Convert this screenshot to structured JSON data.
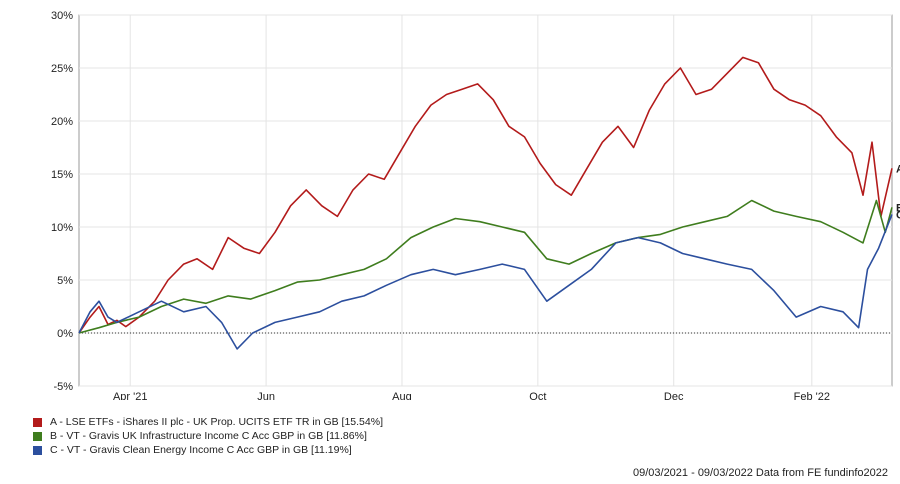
{
  "chart_data": {
    "type": "line",
    "ylim": [
      -5,
      30
    ],
    "y_ticks": [
      "30%",
      "25%",
      "20%",
      "15%",
      "10%",
      "5%",
      "0%",
      "-5%"
    ],
    "y_tick_values": [
      30,
      25,
      20,
      15,
      10,
      5,
      0,
      -5
    ],
    "x_range": [
      "2021-03-09",
      "2022-03-09"
    ],
    "x_ticks": [
      {
        "label": "Apr '21",
        "date": "2021-04-01"
      },
      {
        "label": "Jun",
        "date": "2021-06-01"
      },
      {
        "label": "Aug",
        "date": "2021-08-01"
      },
      {
        "label": "Oct",
        "date": "2021-10-01"
      },
      {
        "label": "Dec",
        "date": "2021-12-01"
      },
      {
        "label": "Feb '22",
        "date": "2022-02-01"
      }
    ],
    "grid": true,
    "series": [
      {
        "name": "A - LSE ETFs - iShares II plc - UK Prop. UCITS ETF TR in GB [15.54%]",
        "marker": "A",
        "color": "#b31b1b",
        "points": [
          [
            "2021-03-09",
            0
          ],
          [
            "2021-03-14",
            1.5
          ],
          [
            "2021-03-18",
            2.5
          ],
          [
            "2021-03-22",
            0.8
          ],
          [
            "2021-03-26",
            1.2
          ],
          [
            "2021-03-30",
            0.6
          ],
          [
            "2021-04-05",
            1.5
          ],
          [
            "2021-04-12",
            3.0
          ],
          [
            "2021-04-18",
            5.0
          ],
          [
            "2021-04-25",
            6.5
          ],
          [
            "2021-05-01",
            7.0
          ],
          [
            "2021-05-08",
            6.0
          ],
          [
            "2021-05-15",
            9.0
          ],
          [
            "2021-05-22",
            8.0
          ],
          [
            "2021-05-29",
            7.5
          ],
          [
            "2021-06-05",
            9.5
          ],
          [
            "2021-06-12",
            12.0
          ],
          [
            "2021-06-19",
            13.5
          ],
          [
            "2021-06-26",
            12.0
          ],
          [
            "2021-07-03",
            11.0
          ],
          [
            "2021-07-10",
            13.5
          ],
          [
            "2021-07-17",
            15.0
          ],
          [
            "2021-07-24",
            14.5
          ],
          [
            "2021-07-31",
            17.0
          ],
          [
            "2021-08-07",
            19.5
          ],
          [
            "2021-08-14",
            21.5
          ],
          [
            "2021-08-21",
            22.5
          ],
          [
            "2021-08-28",
            23.0
          ],
          [
            "2021-09-04",
            23.5
          ],
          [
            "2021-09-11",
            22.0
          ],
          [
            "2021-09-18",
            19.5
          ],
          [
            "2021-09-25",
            18.5
          ],
          [
            "2021-10-02",
            16.0
          ],
          [
            "2021-10-09",
            14.0
          ],
          [
            "2021-10-16",
            13.0
          ],
          [
            "2021-10-23",
            15.5
          ],
          [
            "2021-10-30",
            18.0
          ],
          [
            "2021-11-06",
            19.5
          ],
          [
            "2021-11-13",
            17.5
          ],
          [
            "2021-11-20",
            21.0
          ],
          [
            "2021-11-27",
            23.5
          ],
          [
            "2021-12-04",
            25.0
          ],
          [
            "2021-12-11",
            22.5
          ],
          [
            "2021-12-18",
            23.0
          ],
          [
            "2021-12-25",
            24.5
          ],
          [
            "2022-01-01",
            26.0
          ],
          [
            "2022-01-08",
            25.5
          ],
          [
            "2022-01-15",
            23.0
          ],
          [
            "2022-01-22",
            22.0
          ],
          [
            "2022-01-29",
            21.5
          ],
          [
            "2022-02-05",
            20.5
          ],
          [
            "2022-02-12",
            18.5
          ],
          [
            "2022-02-19",
            17.0
          ],
          [
            "2022-02-24",
            13.0
          ],
          [
            "2022-02-28",
            18.0
          ],
          [
            "2022-03-04",
            11.0
          ],
          [
            "2022-03-09",
            15.54
          ]
        ]
      },
      {
        "name": "B - VT - Gravis UK Infrastructure Income C Acc GBP in GB [11.86%]",
        "marker": "B",
        "color": "#3f7d1e",
        "points": [
          [
            "2021-03-09",
            0
          ],
          [
            "2021-03-18",
            0.5
          ],
          [
            "2021-03-26",
            1.0
          ],
          [
            "2021-04-05",
            1.5
          ],
          [
            "2021-04-15",
            2.5
          ],
          [
            "2021-04-25",
            3.2
          ],
          [
            "2021-05-05",
            2.8
          ],
          [
            "2021-05-15",
            3.5
          ],
          [
            "2021-05-25",
            3.2
          ],
          [
            "2021-06-05",
            4.0
          ],
          [
            "2021-06-15",
            4.8
          ],
          [
            "2021-06-25",
            5.0
          ],
          [
            "2021-07-05",
            5.5
          ],
          [
            "2021-07-15",
            6.0
          ],
          [
            "2021-07-25",
            7.0
          ],
          [
            "2021-08-05",
            9.0
          ],
          [
            "2021-08-15",
            10.0
          ],
          [
            "2021-08-25",
            10.8
          ],
          [
            "2021-09-05",
            10.5
          ],
          [
            "2021-09-15",
            10.0
          ],
          [
            "2021-09-25",
            9.5
          ],
          [
            "2021-10-05",
            7.0
          ],
          [
            "2021-10-15",
            6.5
          ],
          [
            "2021-10-25",
            7.5
          ],
          [
            "2021-11-05",
            8.5
          ],
          [
            "2021-11-15",
            9.0
          ],
          [
            "2021-11-25",
            9.3
          ],
          [
            "2021-12-05",
            10.0
          ],
          [
            "2021-12-15",
            10.5
          ],
          [
            "2021-12-25",
            11.0
          ],
          [
            "2022-01-05",
            12.5
          ],
          [
            "2022-01-15",
            11.5
          ],
          [
            "2022-01-25",
            11.0
          ],
          [
            "2022-02-05",
            10.5
          ],
          [
            "2022-02-15",
            9.5
          ],
          [
            "2022-02-24",
            8.5
          ],
          [
            "2022-03-02",
            12.5
          ],
          [
            "2022-03-06",
            9.5
          ],
          [
            "2022-03-09",
            11.86
          ]
        ]
      },
      {
        "name": "C - VT - Gravis Clean Energy Income C Acc GBP in GB [11.19%]",
        "marker": "C",
        "color": "#2c4f9e",
        "points": [
          [
            "2021-03-09",
            0
          ],
          [
            "2021-03-14",
            2.0
          ],
          [
            "2021-03-18",
            3.0
          ],
          [
            "2021-03-22",
            1.5
          ],
          [
            "2021-03-26",
            1.0
          ],
          [
            "2021-04-05",
            2.0
          ],
          [
            "2021-04-15",
            3.0
          ],
          [
            "2021-04-25",
            2.0
          ],
          [
            "2021-05-05",
            2.5
          ],
          [
            "2021-05-12",
            1.0
          ],
          [
            "2021-05-19",
            -1.5
          ],
          [
            "2021-05-26",
            0.0
          ],
          [
            "2021-06-05",
            1.0
          ],
          [
            "2021-06-15",
            1.5
          ],
          [
            "2021-06-25",
            2.0
          ],
          [
            "2021-07-05",
            3.0
          ],
          [
            "2021-07-15",
            3.5
          ],
          [
            "2021-07-25",
            4.5
          ],
          [
            "2021-08-05",
            5.5
          ],
          [
            "2021-08-15",
            6.0
          ],
          [
            "2021-08-25",
            5.5
          ],
          [
            "2021-09-05",
            6.0
          ],
          [
            "2021-09-15",
            6.5
          ],
          [
            "2021-09-25",
            6.0
          ],
          [
            "2021-10-05",
            3.0
          ],
          [
            "2021-10-15",
            4.5
          ],
          [
            "2021-10-25",
            6.0
          ],
          [
            "2021-11-05",
            8.5
          ],
          [
            "2021-11-15",
            9.0
          ],
          [
            "2021-11-25",
            8.5
          ],
          [
            "2021-12-05",
            7.5
          ],
          [
            "2021-12-15",
            7.0
          ],
          [
            "2021-12-25",
            6.5
          ],
          [
            "2022-01-05",
            6.0
          ],
          [
            "2022-01-15",
            4.0
          ],
          [
            "2022-01-25",
            1.5
          ],
          [
            "2022-02-05",
            2.5
          ],
          [
            "2022-02-15",
            2.0
          ],
          [
            "2022-02-22",
            0.5
          ],
          [
            "2022-02-26",
            6.0
          ],
          [
            "2022-03-03",
            8.0
          ],
          [
            "2022-03-09",
            11.19
          ]
        ]
      }
    ],
    "zero_line": true
  },
  "footer": {
    "date_range": "09/03/2021 - 09/03/2022 Data from FE fundinfo2022"
  }
}
